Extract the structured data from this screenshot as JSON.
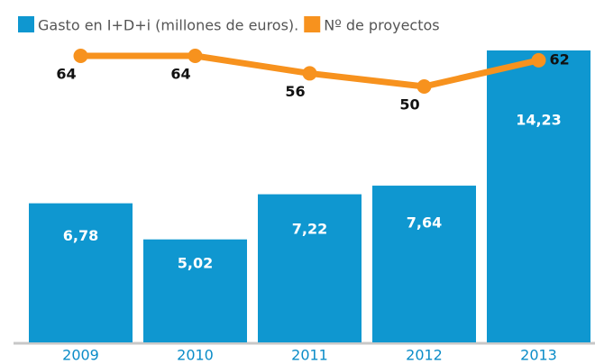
{
  "chart_data": {
    "type": "bar",
    "categories": [
      "2009",
      "2010",
      "2011",
      "2012",
      "2013"
    ],
    "series": [
      {
        "name": "Gasto en I+D+i (millones de euros).",
        "type": "bar",
        "color": "#0f97d0",
        "values": [
          6.78,
          5.02,
          7.22,
          7.64,
          14.23
        ],
        "value_labels": [
          "6,78",
          "5,02",
          "7,22",
          "7,64",
          "14,23"
        ]
      },
      {
        "name": "Nº de proyectos",
        "type": "line",
        "color": "#f7921e",
        "axis": "y2",
        "values": [
          64,
          64,
          56,
          50,
          62
        ]
      }
    ]
  }
}
